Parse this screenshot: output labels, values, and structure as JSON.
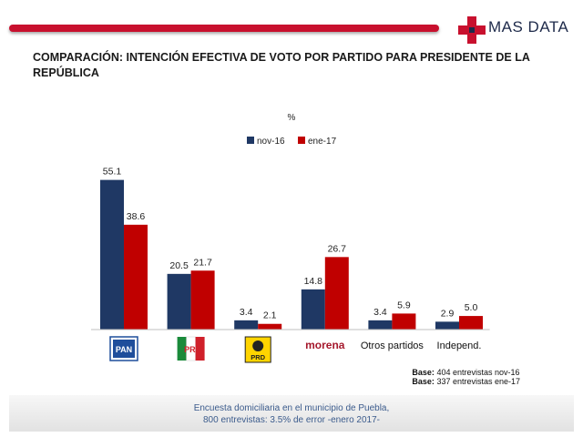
{
  "brand": {
    "name": "MAS DATA"
  },
  "title": "COMPARACIÓN: INTENCIÓN EFECTIVA DE VOTO POR PARTIDO PARA PRESIDENTE DE LA REPÚBLICA",
  "colors": {
    "nov16": "#1f3864",
    "ene17": "#c00000",
    "accent": "#c8102e",
    "footer_text": "#3b5b8c"
  },
  "chart_data": {
    "type": "bar",
    "unit_label": "%",
    "categories": [
      "PAN",
      "PRI",
      "PRD",
      "morena",
      "Otros partidos",
      "Independ."
    ],
    "category_display": [
      {
        "kind": "logo",
        "icon": "pan-logo",
        "text": "PAN"
      },
      {
        "kind": "logo",
        "icon": "pri-logo",
        "text": "PRI"
      },
      {
        "kind": "logo",
        "icon": "prd-logo",
        "text": "PRD"
      },
      {
        "kind": "logo",
        "icon": "morena-logo",
        "text": "morena"
      },
      {
        "kind": "text",
        "text": "Otros partidos"
      },
      {
        "kind": "text",
        "text": "Independ."
      }
    ],
    "series": [
      {
        "name": "nov-16",
        "values": [
          55.1,
          20.5,
          3.4,
          14.8,
          3.4,
          2.9
        ],
        "labels": [
          "55.1",
          "20.5",
          "3.4",
          "14.8",
          "3.4",
          "2.9"
        ]
      },
      {
        "name": "ene-17",
        "values": [
          38.6,
          21.7,
          2.1,
          26.7,
          5.9,
          5.0
        ],
        "labels": [
          "38.6",
          "21.7",
          "2.1",
          "26.7",
          "5.9",
          "5.0"
        ]
      }
    ],
    "ylim": [
      0,
      60
    ],
    "legend_position": "top-center",
    "grid": false
  },
  "base": {
    "label": "Base:",
    "line1": "404 entrevistas nov-16",
    "line2": "337 entrevistas ene-17"
  },
  "footer": {
    "line1": "Encuesta domiciliaria en el municipio de Puebla,",
    "line2": "800 entrevistas: 3.5% de error -enero 2017-"
  }
}
